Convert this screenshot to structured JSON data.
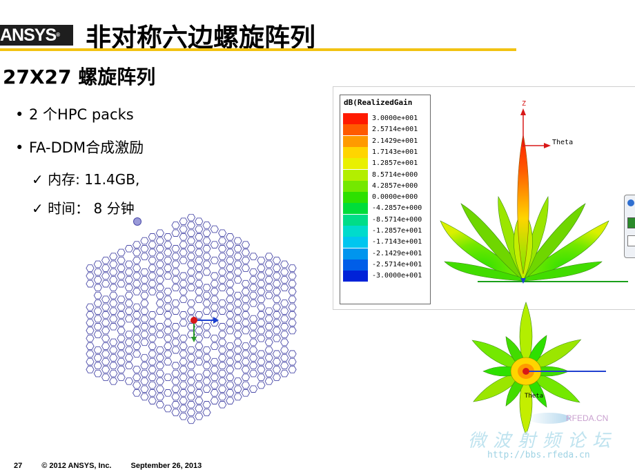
{
  "header": {
    "logo": "ANSYS",
    "logo_mark": "®",
    "title": "非对称六边螺旋阵列"
  },
  "subtitle": "27X27 螺旋阵列",
  "bullets": [
    {
      "marker": "•",
      "text": "2 个HPC packs"
    },
    {
      "marker": "•",
      "text": "FA-DDM合成激励"
    }
  ],
  "subitems": [
    {
      "marker": "✓",
      "label": "内存",
      "value": ": 11.4GB,"
    },
    {
      "marker": "✓",
      "label": "时间：",
      "value": " 8 分钟"
    }
  ],
  "legend": {
    "title": "dB(RealizedGain",
    "entries": [
      {
        "value": "3.0000e+001",
        "color": "#ff1a00"
      },
      {
        "value": "2.5714e+001",
        "color": "#ff5a00"
      },
      {
        "value": "2.1429e+001",
        "color": "#ff9a00"
      },
      {
        "value": "1.7143e+001",
        "color": "#ffd500"
      },
      {
        "value": "1.2857e+001",
        "color": "#e9f000"
      },
      {
        "value": "8.5714e+000",
        "color": "#b3ee00"
      },
      {
        "value": "4.2857e+000",
        "color": "#74e800"
      },
      {
        "value": "0.0000e+000",
        "color": "#2ee000"
      },
      {
        "value": "-4.2857e+000",
        "color": "#00dd3a"
      },
      {
        "value": "-8.5714e+000",
        "color": "#00dd88"
      },
      {
        "value": "-1.2857e+001",
        "color": "#00dbcc"
      },
      {
        "value": "-1.7143e+001",
        "color": "#00c6ef"
      },
      {
        "value": "-2.1429e+001",
        "color": "#0095ee"
      },
      {
        "value": "-2.5714e+001",
        "color": "#005ee8"
      },
      {
        "value": "-3.0000e+001",
        "color": "#0022d8"
      }
    ]
  },
  "plot_labels": {
    "z_axis": "Z",
    "theta_top": "Theta",
    "theta_bottom": "Theta"
  },
  "footer": {
    "page": "27",
    "copyright": "© 2012 ANSYS, Inc.",
    "date": "September 26, 2013"
  },
  "watermark": {
    "brand": "RFEDA.CN",
    "text": "微波射频论坛",
    "url": "http://bbs.rfeda.cn"
  },
  "colors": {
    "accent_rule": "#f2c313",
    "array_stroke": "#4a4aa8",
    "highlight_element": "#9a9ad8"
  }
}
